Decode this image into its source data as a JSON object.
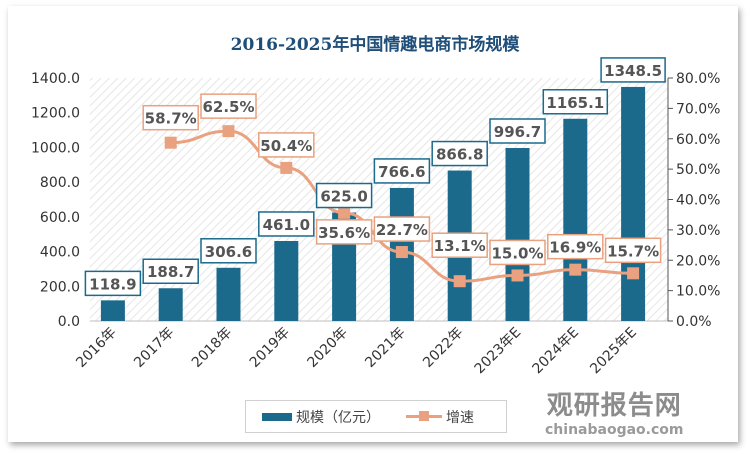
{
  "chart_data": {
    "type": "bar+line",
    "title": "2016-2025年中国情趣电商市场规模",
    "categories": [
      "2016年",
      "2017年",
      "2018年",
      "2019年",
      "2020年",
      "2021年",
      "2022年",
      "2023年E",
      "2024年E",
      "2025年E"
    ],
    "series": [
      {
        "name": "规模（亿元）",
        "type": "bar",
        "axis": "left",
        "color": "#1b6a8c",
        "values": [
          118.9,
          188.7,
          306.6,
          461.0,
          625.0,
          766.6,
          866.8,
          996.7,
          1165.1,
          1348.5
        ],
        "labels": [
          "118.9",
          "188.7",
          "306.6",
          "461.0",
          "625.0",
          "766.6",
          "866.8",
          "996.7",
          "1165.1",
          "1348.5"
        ]
      },
      {
        "name": "增速",
        "type": "line",
        "axis": "right",
        "color": "#e9a17f",
        "values": [
          null,
          58.7,
          62.5,
          50.4,
          35.6,
          22.7,
          13.1,
          15.0,
          16.9,
          15.7
        ],
        "labels": [
          "",
          "58.7%",
          "62.5%",
          "50.4%",
          "35.6%",
          "22.7%",
          "13.1%",
          "15.0%",
          "16.9%",
          "15.7%"
        ]
      }
    ],
    "y_left": {
      "range": [
        0,
        1400
      ],
      "ticks": [
        "0.0",
        "200.0",
        "400.0",
        "600.0",
        "800.0",
        "1000.0",
        "1200.0",
        "1400.0"
      ]
    },
    "y_right": {
      "range": [
        0,
        80
      ],
      "ticks": [
        "0.0%",
        "10.0%",
        "20.0%",
        "30.0%",
        "40.0%",
        "50.0%",
        "60.0%",
        "70.0%",
        "80.0%"
      ]
    },
    "grid": false,
    "legend_position": "bottom"
  },
  "watermark": {
    "cn": "观研报告网",
    "en": "chinabaogao.com"
  }
}
